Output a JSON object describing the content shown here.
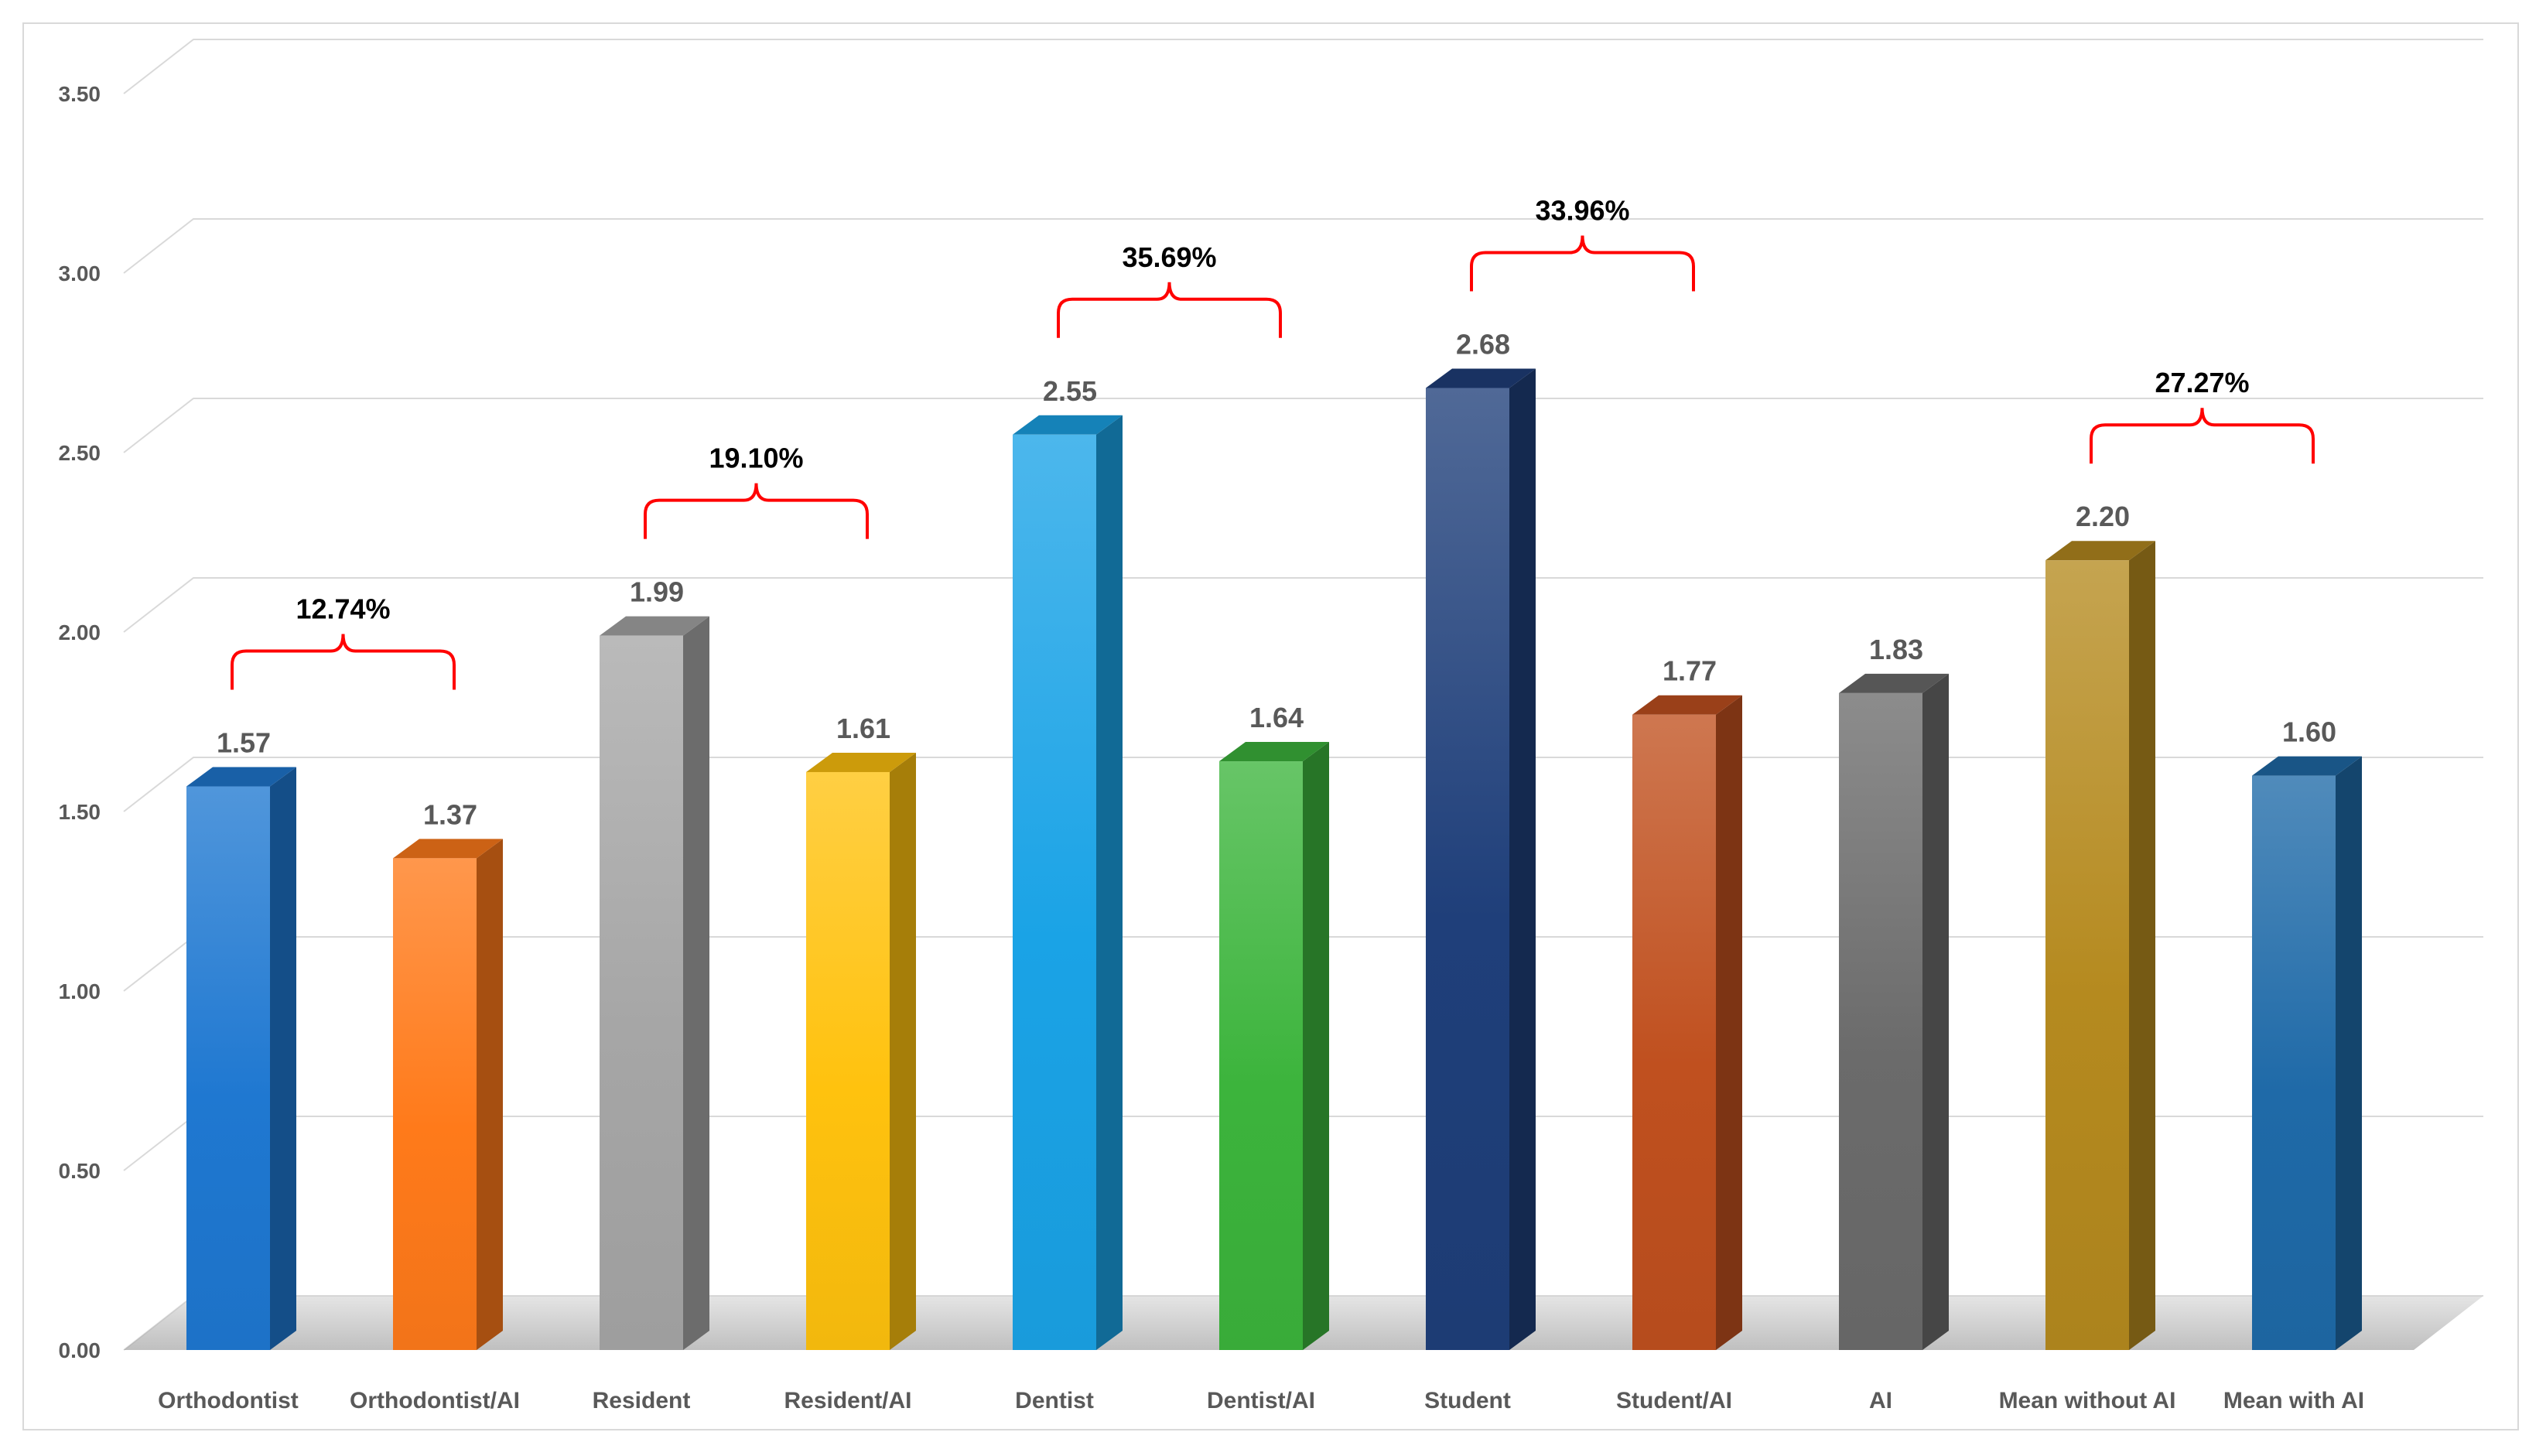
{
  "chart_data": {
    "type": "bar",
    "title": "",
    "xlabel": "",
    "ylabel": "",
    "ylim": [
      0,
      3.5
    ],
    "yticks": [
      "0.00",
      "0.50",
      "1.00",
      "1.50",
      "2.00",
      "2.50",
      "3.00",
      "3.50"
    ],
    "grid": true,
    "style": "3d-bars",
    "categories": [
      "Orthodontist",
      "Orthodontist/AI",
      "Resident",
      "Resident/AI",
      "Dentist",
      "Dentist/AI",
      "Student",
      "Student/AI",
      "AI",
      "Mean without AI",
      "Mean with AI"
    ],
    "values": [
      1.57,
      1.37,
      1.99,
      1.61,
      2.55,
      1.64,
      2.68,
      1.77,
      1.83,
      2.2,
      1.6
    ],
    "value_labels": [
      "1.57",
      "1.37",
      "1.99",
      "1.61",
      "2.55",
      "1.64",
      "2.68",
      "1.77",
      "1.83",
      "2.20",
      "1.60"
    ],
    "bar_colors": [
      "#1f78d1",
      "#ff7a1a",
      "#a6a6a6",
      "#ffc20e",
      "#1aa3e6",
      "#3cb43c",
      "#1f3f7a",
      "#c0501f",
      "#6b6b6b",
      "#b58a1f",
      "#1f6aa8"
    ],
    "annotations": [
      {
        "label": "12.74%",
        "from": 0,
        "to": 1,
        "color": "#ff0000"
      },
      {
        "label": "19.10%",
        "from": 2,
        "to": 3,
        "color": "#ff0000"
      },
      {
        "label": "35.69%",
        "from": 4,
        "to": 5,
        "color": "#ff0000"
      },
      {
        "label": "33.96%",
        "from": 6,
        "to": 7,
        "color": "#ff0000"
      },
      {
        "label": "27.27%",
        "from": 9,
        "to": 10,
        "color": "#ff0000"
      }
    ]
  }
}
